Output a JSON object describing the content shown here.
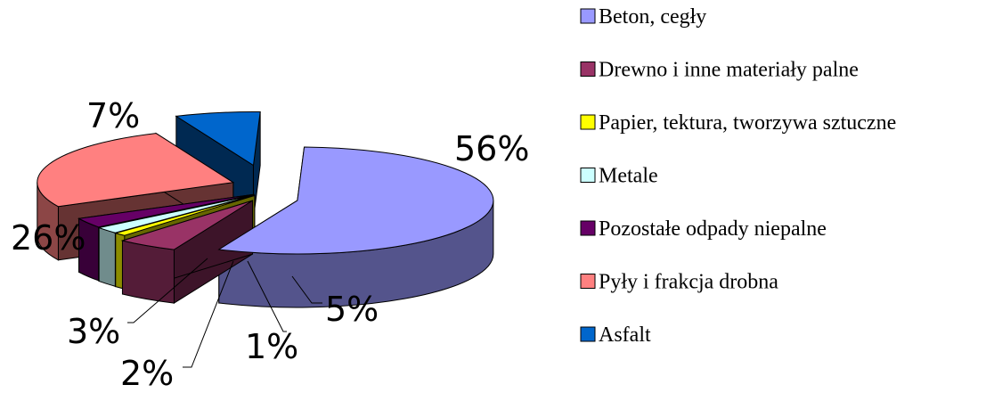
{
  "chart_data": {
    "type": "pie",
    "style": "3d-exploded",
    "slices": [
      {
        "label": "Beton, cegły",
        "value": 56,
        "display": "56%",
        "color": "#9999ff"
      },
      {
        "label": "Drewno i inne materiały palne",
        "value": 5,
        "display": "5%",
        "color": "#993366"
      },
      {
        "label": "Papier, tektura, tworzywa sztuczne",
        "value": 1,
        "display": "1%",
        "color": "#ffff00"
      },
      {
        "label": "Metale",
        "value": 2,
        "display": "2%",
        "color": "#ccffff"
      },
      {
        "label": "Pozostałe odpady niepalne",
        "value": 3,
        "display": "3%",
        "color": "#660066"
      },
      {
        "label": "Pyły i frakcja drobna",
        "value": 26,
        "display": "26%",
        "color": "#ff8080"
      },
      {
        "label": "Asfalt",
        "value": 7,
        "display": "7%",
        "color": "#0066cc"
      }
    ],
    "legend_position": "right"
  }
}
